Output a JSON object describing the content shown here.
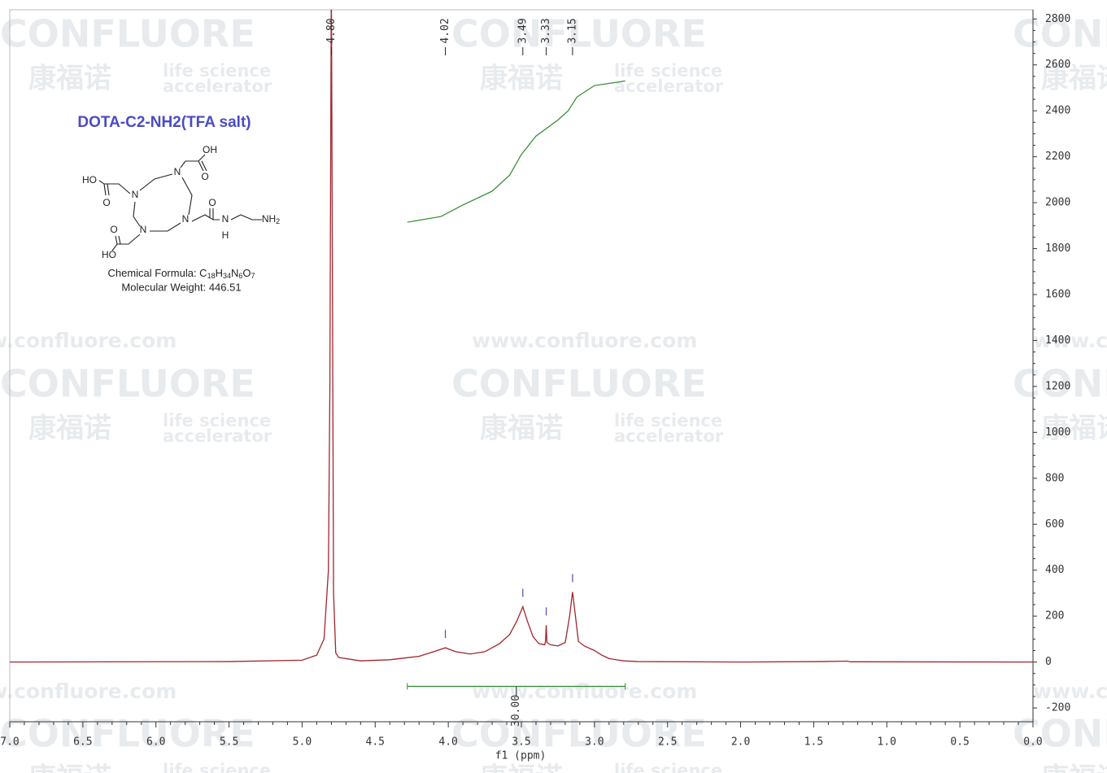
{
  "chart_data": {
    "type": "line",
    "title": "DOTA-C2-NH2(TFA salt)",
    "formula": "Chemical Formula: C18H34N6O7",
    "weight": "Molecular Weight: 446.51",
    "structure_labels": [
      "OH",
      "O",
      "HO",
      "O",
      "N",
      "N",
      "N",
      "N",
      "O",
      "N",
      "H",
      "NH2",
      "O",
      "HO"
    ],
    "xlabel": "f1 (ppm)",
    "x": [
      7.0,
      5.5,
      5.0,
      4.9,
      4.85,
      4.82,
      4.81,
      4.8,
      4.79,
      4.785,
      4.77,
      4.75,
      4.6,
      4.4,
      4.2,
      4.1,
      4.02,
      3.95,
      3.85,
      3.75,
      3.65,
      3.58,
      3.53,
      3.49,
      3.46,
      3.42,
      3.38,
      3.34,
      3.335,
      3.33,
      3.325,
      3.3,
      3.25,
      3.2,
      3.17,
      3.15,
      3.13,
      3.11,
      3.07,
      3.0,
      2.95,
      2.9,
      2.8,
      2.7,
      2.0,
      1.45,
      1.27,
      1.25,
      0.0
    ],
    "values": [
      0,
      2,
      8,
      30,
      100,
      400,
      1200,
      3000,
      1200,
      300,
      40,
      20,
      5,
      10,
      25,
      45,
      62,
      45,
      35,
      45,
      80,
      120,
      180,
      241,
      180,
      110,
      80,
      75,
      90,
      160,
      85,
      75,
      70,
      85,
      200,
      305,
      200,
      90,
      70,
      50,
      30,
      15,
      5,
      2,
      0,
      2,
      4,
      1,
      0
    ],
    "color": "#a0262d",
    "xlim": [
      7.0,
      0.0
    ],
    "xticks": [
      {
        "value": 7.0,
        "label": "7.0"
      },
      {
        "value": 6.5,
        "label": "6.5"
      },
      {
        "value": 6.0,
        "label": "6.0"
      },
      {
        "value": 5.5,
        "label": "5.5"
      },
      {
        "value": 5.0,
        "label": "5.0"
      },
      {
        "value": 4.5,
        "label": "4.5"
      },
      {
        "value": 4.0,
        "label": "4.0"
      },
      {
        "value": 3.5,
        "label": "3.5"
      },
      {
        "value": 3.0,
        "label": "3.0"
      },
      {
        "value": 2.5,
        "label": "2.5"
      },
      {
        "value": 2.0,
        "label": "2.0"
      },
      {
        "value": 1.5,
        "label": "1.5"
      },
      {
        "value": 1.0,
        "label": "1.0"
      },
      {
        "value": 0.5,
        "label": "0.5"
      },
      {
        "value": 0.0,
        "label": "0.0"
      }
    ],
    "ylim": [
      -260,
      2840
    ],
    "yticks": [
      -200,
      0,
      200,
      400,
      600,
      800,
      1000,
      1200,
      1400,
      1600,
      1800,
      2000,
      2200,
      2400,
      2600,
      2800
    ],
    "peaks": [
      {
        "value": 4.8,
        "label": "4.80"
      },
      {
        "value": 4.02,
        "label": "4.02"
      },
      {
        "value": 3.49,
        "label": "3.49"
      },
      {
        "value": 3.33,
        "label": "3.33"
      },
      {
        "value": 3.15,
        "label": "3.15"
      }
    ],
    "peak_color": "#4a4ab8",
    "integral": {
      "x": [
        4.28,
        4.05,
        3.9,
        3.7,
        3.58,
        3.5,
        3.4,
        3.25,
        3.18,
        3.12,
        3.0,
        2.79
      ],
      "values": [
        1915,
        1940,
        1990,
        2050,
        2120,
        2210,
        2290,
        2360,
        2400,
        2460,
        2510,
        2530
      ],
      "color": "#2e8b2e"
    },
    "integration": {
      "from": 4.28,
      "to": 2.79,
      "level": -106,
      "label": "30.00"
    }
  },
  "watermark": {
    "brand": "CONFLUORE",
    "cn": "康福诺",
    "tagline1": "life science",
    "tagline2": "accelerator",
    "url": "www.confluore.com"
  }
}
